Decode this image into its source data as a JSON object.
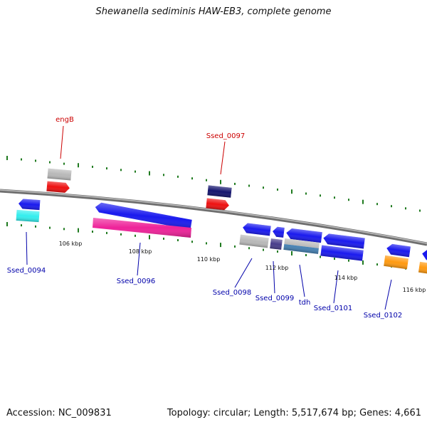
{
  "title": "Shewanella sediminis HAW-EB3, complete genome",
  "footer": {
    "accession": "Accession: NC_009831",
    "topology": "Topology: circular; Length: 5,517,674 bp; Genes: 4,661"
  },
  "colors": {
    "backbone": "#7a7a7a",
    "tick": "#1f7a1f",
    "label_red": "#cc0000",
    "label_blue": "#0000aa",
    "gene_blue": "#1a1aee",
    "gene_red": "#ee1111",
    "gene_gray": "#b8b8b8",
    "gene_navy": "#14146e",
    "gene_cyan": "#33eeee",
    "gene_magenta": "#ee2299",
    "gene_steel": "#4682b4",
    "gene_purple": "#483d8b",
    "gene_orange": "#ff9a10"
  },
  "scale_labels": [
    {
      "text": "106 kbp"
    },
    {
      "text": "108 kbp"
    },
    {
      "text": "110 kbp"
    },
    {
      "text": "112 kbp"
    },
    {
      "text": "114 kbp"
    },
    {
      "text": "116 kbp"
    }
  ],
  "gene_labels": [
    {
      "text": "engB",
      "color": "label_red"
    },
    {
      "text": "Ssed_0097",
      "color": "label_red"
    },
    {
      "text": "Ssed_0094",
      "color": "label_blue"
    },
    {
      "text": "Ssed_0096",
      "color": "label_blue"
    },
    {
      "text": "Ssed_0098",
      "color": "label_blue"
    },
    {
      "text": "Ssed_0099",
      "color": "label_blue"
    },
    {
      "text": "tdh",
      "color": "label_blue"
    },
    {
      "text": "Ssed_0101",
      "color": "label_blue"
    },
    {
      "text": "Ssed_0102",
      "color": "label_blue"
    }
  ]
}
